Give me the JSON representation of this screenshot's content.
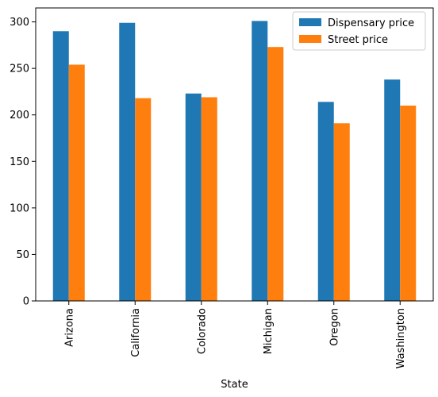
{
  "chart_data": {
    "type": "bar",
    "title": "",
    "xlabel": "State",
    "ylabel": "",
    "categories": [
      "Arizona",
      "California",
      "Colorado",
      "Michigan",
      "Oregon",
      "Washington"
    ],
    "series": [
      {
        "name": "Dispensary price",
        "color": "#1f77b4",
        "values": [
          290,
          299,
          223,
          301,
          214,
          238
        ]
      },
      {
        "name": "Street price",
        "color": "#ff7f0e",
        "values": [
          254,
          218,
          219,
          273,
          191,
          210
        ]
      }
    ],
    "ylim": [
      0,
      315
    ],
    "yticks": [
      0,
      50,
      100,
      150,
      200,
      250,
      300
    ],
    "grid": false,
    "legend_position": "top-right"
  }
}
